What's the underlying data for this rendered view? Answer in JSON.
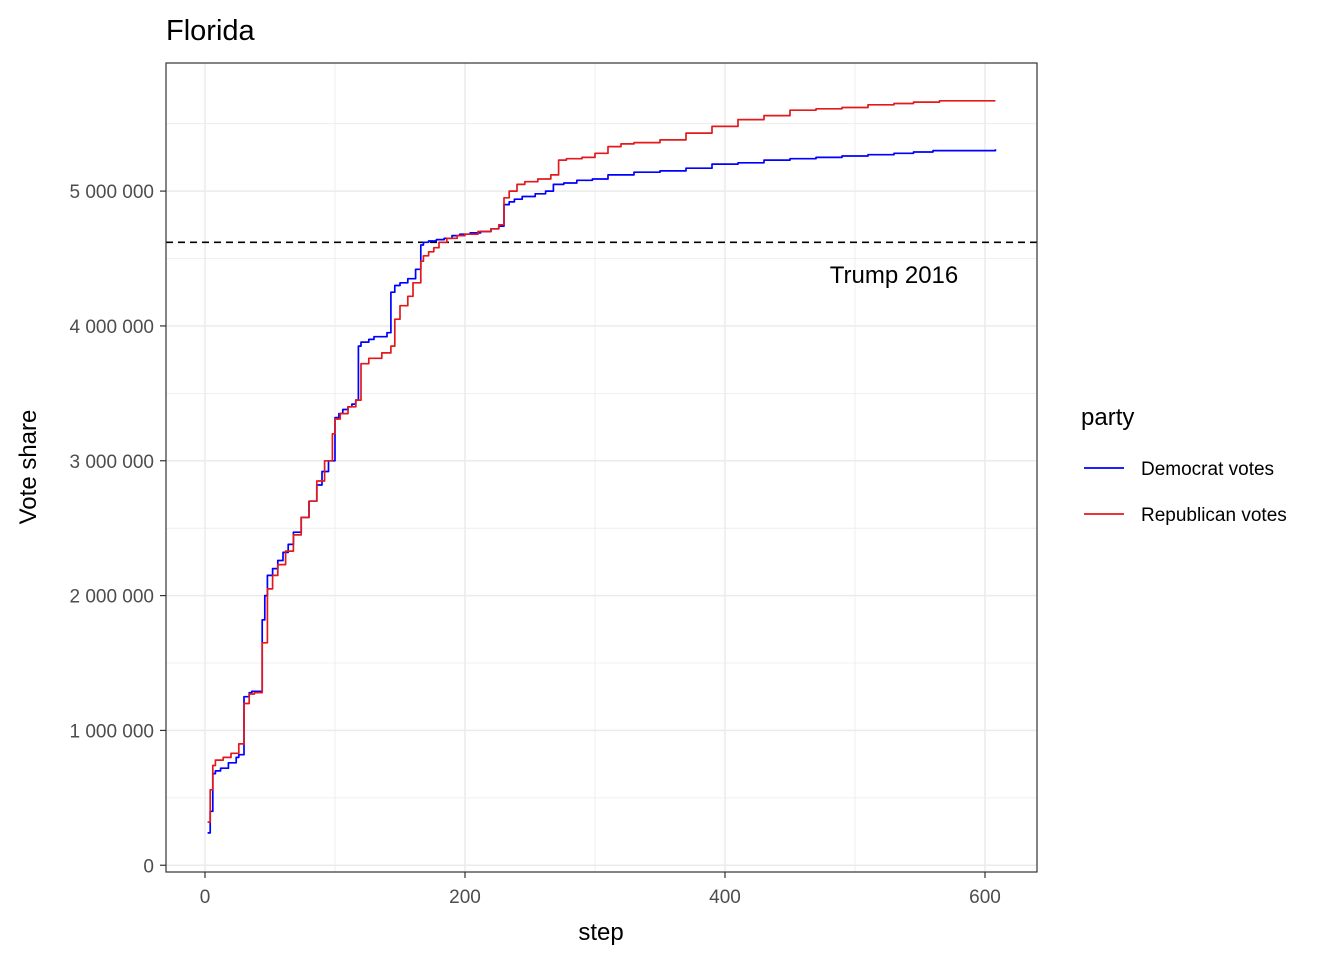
{
  "chart_data": {
    "type": "line",
    "title": "Florida",
    "xlabel": "step",
    "ylabel": "Vote share",
    "xlim": [
      -30,
      640
    ],
    "ylim": [
      -50000,
      5950000
    ],
    "x_ticks": [
      0,
      200,
      400,
      600
    ],
    "x_tick_labels": [
      "0",
      "200",
      "400",
      "600"
    ],
    "y_ticks": [
      0,
      1000000,
      2000000,
      3000000,
      4000000,
      5000000
    ],
    "y_tick_labels": [
      "0",
      "1 000 000",
      "2 000 000",
      "3 000 000",
      "4 000 000",
      "5 000 000"
    ],
    "grid": true,
    "legend": {
      "title": "party",
      "position": "right"
    },
    "reference_line": {
      "y": 4620000,
      "style": "dashed",
      "color": "#000000",
      "label": "Trump 2016",
      "label_x": 530,
      "label_y": 4320000
    },
    "series": [
      {
        "name": "Democrat votes",
        "color": "#0000ff",
        "x": [
          2,
          4,
          6,
          8,
          12,
          18,
          24,
          26,
          30,
          34,
          36,
          42,
          44,
          46,
          48,
          52,
          56,
          60,
          64,
          68,
          74,
          80,
          86,
          90,
          95,
          100,
          103,
          106,
          110,
          113,
          116,
          118,
          120,
          126,
          130,
          140,
          143,
          146,
          150,
          156,
          162,
          166,
          168,
          172,
          178,
          184,
          190,
          196,
          204,
          212,
          220,
          226,
          230,
          234,
          238,
          244,
          254,
          262,
          268,
          276,
          286,
          298,
          310,
          330,
          350,
          370,
          390,
          410,
          430,
          450,
          470,
          490,
          510,
          530,
          545,
          560,
          580,
          608
        ],
        "values": [
          240000,
          400000,
          680000,
          700000,
          720000,
          760000,
          800000,
          820000,
          1250000,
          1280000,
          1290000,
          1290000,
          1820000,
          2000000,
          2150000,
          2200000,
          2260000,
          2320000,
          2380000,
          2470000,
          2580000,
          2700000,
          2820000,
          2920000,
          3000000,
          3320000,
          3350000,
          3380000,
          3400000,
          3420000,
          3450000,
          3850000,
          3880000,
          3900000,
          3920000,
          3950000,
          4250000,
          4300000,
          4320000,
          4350000,
          4420000,
          4600000,
          4620000,
          4630000,
          4640000,
          4650000,
          4670000,
          4680000,
          4690000,
          4700000,
          4720000,
          4740000,
          4900000,
          4920000,
          4940000,
          4960000,
          4980000,
          5000000,
          5050000,
          5060000,
          5080000,
          5090000,
          5120000,
          5140000,
          5150000,
          5170000,
          5200000,
          5210000,
          5230000,
          5240000,
          5250000,
          5260000,
          5270000,
          5280000,
          5290000,
          5300000,
          5300000,
          5310000
        ]
      },
      {
        "name": "Republican votes",
        "color": "#e31a1c",
        "x": [
          2,
          4,
          6,
          8,
          14,
          20,
          26,
          30,
          34,
          38,
          42,
          44,
          48,
          52,
          56,
          62,
          68,
          74,
          80,
          86,
          92,
          98,
          100,
          104,
          110,
          116,
          120,
          126,
          136,
          143,
          146,
          150,
          156,
          160,
          166,
          168,
          172,
          176,
          180,
          186,
          194,
          200,
          210,
          220,
          226,
          230,
          234,
          240,
          246,
          256,
          266,
          272,
          278,
          290,
          300,
          310,
          320,
          330,
          350,
          370,
          390,
          410,
          430,
          450,
          470,
          490,
          510,
          530,
          545,
          565,
          585,
          608
        ],
        "values": [
          320000,
          560000,
          740000,
          780000,
          800000,
          830000,
          900000,
          1200000,
          1270000,
          1280000,
          1280000,
          1650000,
          2050000,
          2150000,
          2230000,
          2330000,
          2450000,
          2580000,
          2700000,
          2850000,
          3000000,
          3200000,
          3310000,
          3350000,
          3400000,
          3450000,
          3720000,
          3760000,
          3800000,
          3850000,
          4050000,
          4150000,
          4220000,
          4320000,
          4480000,
          4520000,
          4550000,
          4580000,
          4620000,
          4650000,
          4670000,
          4680000,
          4700000,
          4720000,
          4750000,
          4950000,
          5000000,
          5050000,
          5070000,
          5090000,
          5120000,
          5230000,
          5240000,
          5250000,
          5280000,
          5330000,
          5350000,
          5360000,
          5380000,
          5430000,
          5480000,
          5530000,
          5560000,
          5600000,
          5610000,
          5620000,
          5640000,
          5650000,
          5660000,
          5670000,
          5670000,
          5670000
        ]
      }
    ]
  }
}
